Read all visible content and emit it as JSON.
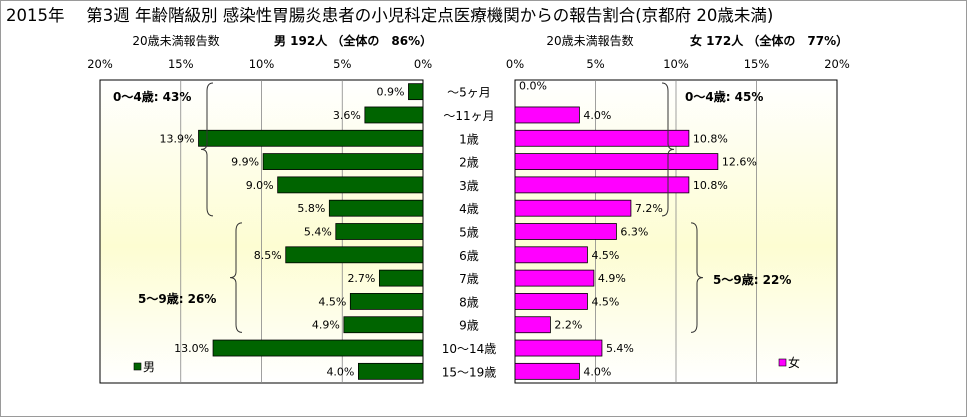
{
  "title": "2015年　 第3週 年齢階級別 感染性胃腸炎患者の小児科定点医療機関からの報告割合(京都府 20歳未満)",
  "chart_data": [
    {
      "type": "bar",
      "orientation": "horizontal",
      "side": "left",
      "header_left": "20歳未満報告数",
      "header_right": "男  192人 （全体の　86%）",
      "xlim": [
        0,
        20
      ],
      "ticks": [
        "20%",
        "15%",
        "10%",
        "5%",
        "0%"
      ],
      "categories": [
        "～5ヶ月",
        "～11ヶ月",
        "1歳",
        "2歳",
        "3歳",
        "4歳",
        "5歳",
        "6歳",
        "7歳",
        "8歳",
        "9歳",
        "10～14歳",
        "15～19歳"
      ],
      "series": [
        {
          "name": "男",
          "values": [
            0.9,
            3.6,
            13.9,
            9.9,
            9.0,
            5.8,
            5.4,
            8.5,
            2.7,
            4.5,
            4.9,
            13.0,
            4.0
          ]
        }
      ],
      "value_labels": [
        "0.9%",
        "3.6%",
        "13.9%",
        "9.9%",
        "9.0%",
        "5.8%",
        "5.4%",
        "8.5%",
        "2.7%",
        "4.5%",
        "4.9%",
        "13.0%",
        "4.0%"
      ],
      "color": "#006400",
      "annotations": [
        "0～4歳: 43%",
        "5～9歳: 26%"
      ],
      "legend": "bottom-left"
    },
    {
      "type": "bar",
      "orientation": "horizontal",
      "side": "right",
      "header_left": "20歳未満報告数",
      "header_right": "女  172人 （全体の　77%）",
      "xlim": [
        0,
        20
      ],
      "ticks": [
        "0%",
        "5%",
        "10%",
        "15%",
        "20%"
      ],
      "categories": [
        "～5ヶ月",
        "～11ヶ月",
        "1歳",
        "2歳",
        "3歳",
        "4歳",
        "5歳",
        "6歳",
        "7歳",
        "8歳",
        "9歳",
        "10～14歳",
        "15～19歳"
      ],
      "series": [
        {
          "name": "女",
          "values": [
            0.0,
            4.0,
            10.8,
            12.6,
            10.8,
            7.2,
            6.3,
            4.5,
            4.9,
            4.5,
            2.2,
            5.4,
            4.0
          ]
        }
      ],
      "value_labels": [
        "0.0%",
        "4.0%",
        "10.8%",
        "12.6%",
        "10.8%",
        "7.2%",
        "6.3%",
        "4.5%",
        "4.9%",
        "4.5%",
        "2.2%",
        "5.4%",
        "4.0%"
      ],
      "color": "#ff00ff",
      "annotations": [
        "0～4歳: 45%",
        "5～9歳: 22%"
      ],
      "legend": "bottom-right"
    }
  ]
}
